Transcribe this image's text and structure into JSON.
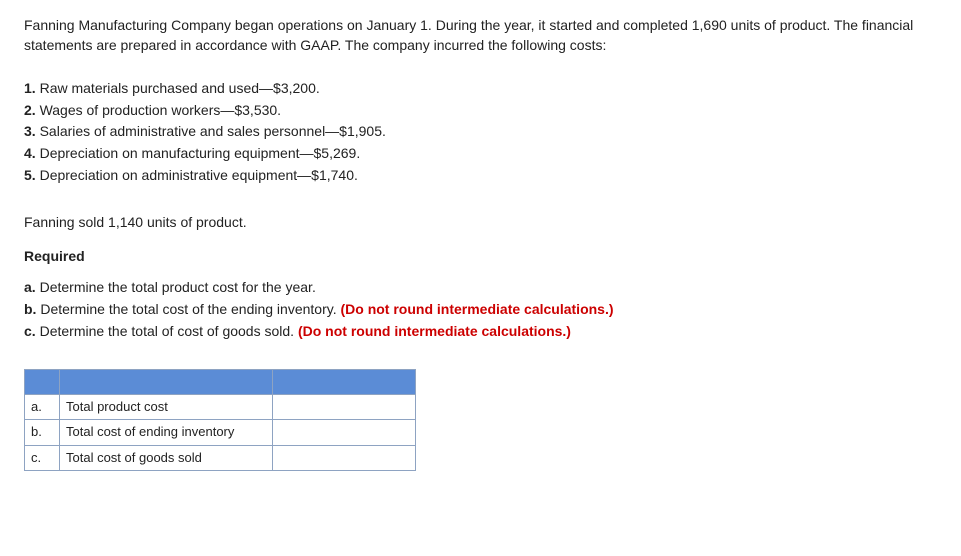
{
  "intro": "Fanning Manufacturing Company began operations on January 1. During the year, it started and completed 1,690 units of product. The financial statements are prepared in accordance with GAAP. The company incurred the following costs:",
  "costs": [
    {
      "num": "1.",
      "text": "Raw materials purchased and used—$3,200."
    },
    {
      "num": "2.",
      "text": "Wages of production workers—$3,530."
    },
    {
      "num": "3.",
      "text": "Salaries of administrative and sales personnel—$1,905."
    },
    {
      "num": "4.",
      "text": "Depreciation on manufacturing equipment—$5,269."
    },
    {
      "num": "5.",
      "text": "Depreciation on administrative equipment—$1,740."
    }
  ],
  "sold": "Fanning sold 1,140 units of product.",
  "required_heading": "Required",
  "required": [
    {
      "lbl": "a.",
      "text": "Determine the total product cost for the year.",
      "note": ""
    },
    {
      "lbl": "b.",
      "text": "Determine the total cost of the ending inventory. ",
      "note": "(Do not round intermediate calculations.)"
    },
    {
      "lbl": "c.",
      "text": "Determine the total of cost of goods sold. ",
      "note": "(Do not round intermediate calculations.)"
    }
  ],
  "table": {
    "rows": [
      {
        "letter": "a.",
        "label": "Total product cost"
      },
      {
        "letter": "b.",
        "label": "Total cost of ending inventory"
      },
      {
        "letter": "c.",
        "label": "Total cost of goods sold"
      }
    ]
  }
}
